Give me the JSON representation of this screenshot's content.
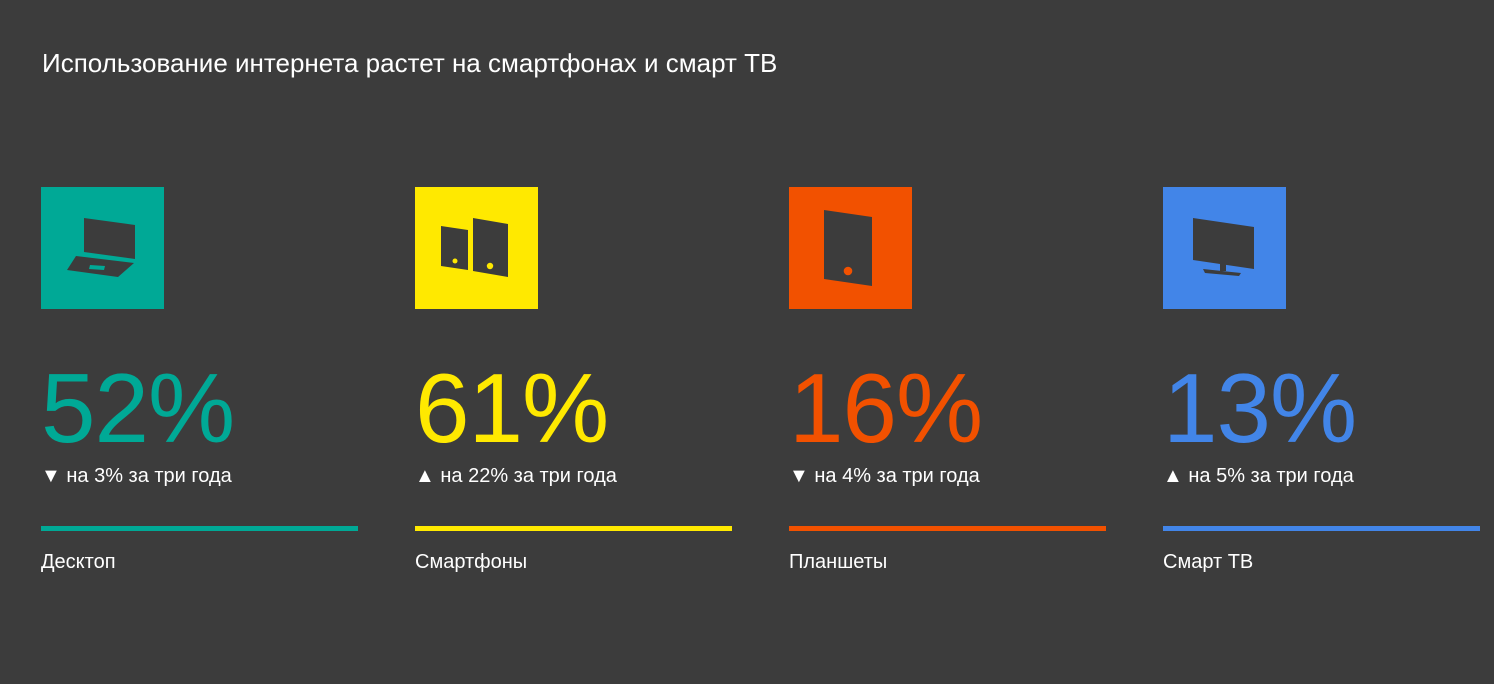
{
  "title": "Использование интернета растет на смартфонах и смарт ТВ",
  "background": "#3c3c3c",
  "items": [
    {
      "icon": "laptop-icon",
      "color": "#00a996",
      "value": "52%",
      "arrow": "▼",
      "direction": "down",
      "change": "на 3% за три года",
      "label": "Десктоп"
    },
    {
      "icon": "smartphones-icon",
      "color": "#ffe900",
      "value": "61%",
      "arrow": "▲",
      "direction": "up",
      "change": "на 22% за три года",
      "label": "Смартфоны"
    },
    {
      "icon": "tablet-icon",
      "color": "#f25100",
      "value": "16%",
      "arrow": "▼",
      "direction": "down",
      "change": "на 4% за три года",
      "label": "Планшеты"
    },
    {
      "icon": "tv-icon",
      "color": "#4285e8",
      "value": "13%",
      "arrow": "▲",
      "direction": "up",
      "change": "на 5% за три года",
      "label": "Смарт ТВ"
    }
  ]
}
